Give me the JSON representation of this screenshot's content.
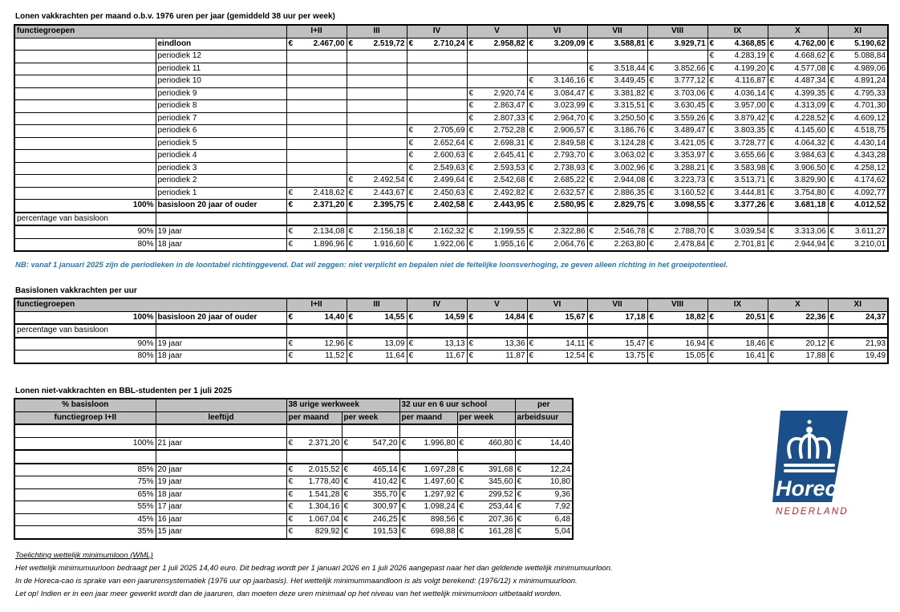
{
  "table1": {
    "title": "Lonen vakkrachten per maand o.b.v. 1976 uren per jaar (gemiddeld 38 uur per week)",
    "header_label": "functiegroepen",
    "columns": [
      "I+II",
      "III",
      "IV",
      "V",
      "VI",
      "VII",
      "VIII",
      "IX",
      "X",
      "XI"
    ],
    "currency": "€",
    "rows": [
      {
        "pct": "",
        "label": "eindloon",
        "bold": true,
        "values": [
          "2.467,00",
          "2.519,72",
          "2.710,24",
          "2.958,82",
          "3.209,09",
          "3.588,81",
          "3.929,71",
          "4.368,85",
          "4.762,00",
          "5.190,62"
        ]
      },
      {
        "pct": "",
        "label": "periodiek 12",
        "values": [
          null,
          null,
          null,
          null,
          null,
          null,
          null,
          "4.283,19",
          "4.668,62",
          "5.088,84"
        ]
      },
      {
        "pct": "",
        "label": "periodiek 11",
        "values": [
          null,
          null,
          null,
          null,
          null,
          "3.518,44",
          "3.852,66",
          "4.199,20",
          "4.577,08",
          "4.989,06"
        ]
      },
      {
        "pct": "",
        "label": "periodiek 10",
        "values": [
          null,
          null,
          null,
          null,
          "3.146,16",
          "3.449,45",
          "3.777,12",
          "4.116,87",
          "4.487,34",
          "4.891,24"
        ]
      },
      {
        "pct": "",
        "label": "periodiek 9",
        "values": [
          null,
          null,
          null,
          "2.920,74",
          "3.084,47",
          "3.381,82",
          "3.703,06",
          "4.036,14",
          "4.399,35",
          "4.795,33"
        ]
      },
      {
        "pct": "",
        "label": "periodiek 8",
        "values": [
          null,
          null,
          null,
          "2.863,47",
          "3.023,99",
          "3.315,51",
          "3.630,45",
          "3.957,00",
          "4.313,09",
          "4.701,30"
        ]
      },
      {
        "pct": "",
        "label": "periodiek 7",
        "values": [
          null,
          null,
          null,
          "2.807,33",
          "2.964,70",
          "3.250,50",
          "3.559,26",
          "3.879,42",
          "4.228,52",
          "4.609,12"
        ]
      },
      {
        "pct": "",
        "label": "periodiek 6",
        "values": [
          null,
          null,
          "2.705,69",
          "2.752,28",
          "2.906,57",
          "3.186,76",
          "3.489,47",
          "3.803,35",
          "4.145,60",
          "4.518,75"
        ]
      },
      {
        "pct": "",
        "label": "periodiek 5",
        "values": [
          null,
          null,
          "2.652,64",
          "2.698,31",
          "2.849,58",
          "3.124,28",
          "3.421,05",
          "3.728,77",
          "4.064,32",
          "4.430,14"
        ]
      },
      {
        "pct": "",
        "label": "periodiek 4",
        "values": [
          null,
          null,
          "2.600,63",
          "2.645,41",
          "2.793,70",
          "3.063,02",
          "3.353,97",
          "3.655,66",
          "3.984,63",
          "4.343,28"
        ]
      },
      {
        "pct": "",
        "label": "periodiek 3",
        "values": [
          null,
          null,
          "2.549,63",
          "2.593,53",
          "2.738,93",
          "3.002,96",
          "3.288,21",
          "3.583,98",
          "3.906,50",
          "4.258,12"
        ]
      },
      {
        "pct": "",
        "label": "periodiek 2",
        "values": [
          null,
          "2.492,54",
          "2.499,64",
          "2.542,68",
          "2.685,22",
          "2.944,08",
          "3.223,73",
          "3.513,71",
          "3.829,90",
          "4.174,62"
        ]
      },
      {
        "pct": "",
        "label": "periodiek 1",
        "values": [
          "2.418,62",
          "2.443,67",
          "2.450,63",
          "2.492,82",
          "2.632,57",
          "2.886,35",
          "3.160,52",
          "3.444,81",
          "3.754,80",
          "4.092,77"
        ]
      },
      {
        "pct": "100%",
        "label": "basisloon 20 jaar of ouder",
        "bold": true,
        "thick": true,
        "values": [
          "2.371,20",
          "2.395,75",
          "2.402,58",
          "2.443,95",
          "2.580,95",
          "2.829,75",
          "3.098,55",
          "3.377,26",
          "3.681,18",
          "4.012,52"
        ]
      },
      {
        "section": "percentage van basisloon",
        "thick": true
      },
      {
        "pct": "90%",
        "label": "19 jaar",
        "values": [
          "2.134,08",
          "2.156,18",
          "2.162,32",
          "2.199,55",
          "2.322,86",
          "2.546,78",
          "2.788,70",
          "3.039,54",
          "3.313,06",
          "3.611,27"
        ]
      },
      {
        "pct": "80%",
        "label": "18 jaar",
        "values": [
          "1.896,96",
          "1.916,60",
          "1.922,06",
          "1.955,16",
          "2.064,76",
          "2.263,80",
          "2.478,84",
          "2.701,81",
          "2.944,94",
          "3.210,01"
        ]
      }
    ]
  },
  "nb_text": "NB: vanaf 1 januari 2025 zijn de periodieken in de loontabel richtinggevend. Dat wil zeggen: niet verplicht en bepalen niet de feitelijke loonsverhoging, ze geven alleen richting in het groeipotentieel.",
  "table2": {
    "title": "Basislonen  vakkrachten per uur",
    "header_label": "functiegroepen",
    "columns": [
      "I+II",
      "III",
      "IV",
      "V",
      "VI",
      "VII",
      "VIII",
      "IX",
      "X",
      "XI"
    ],
    "currency": "€",
    "rows": [
      {
        "pct": "100%",
        "label": "basisloon 20 jaar of ouder",
        "bold": true,
        "thick": true,
        "values": [
          "14,40",
          "14,55",
          "14,59",
          "14,84",
          "15,67",
          "17,18",
          "18,82",
          "20,51",
          "22,36",
          "24,37"
        ]
      },
      {
        "section": "percentage van basisloon",
        "thick": true
      },
      {
        "pct": "90%",
        "label": "19 jaar",
        "values": [
          "12,96",
          "13,09",
          "13,13",
          "13,36",
          "14,11",
          "15,47",
          "16,94",
          "18,46",
          "20,12",
          "21,93"
        ]
      },
      {
        "pct": "80%",
        "label": "18 jaar",
        "values": [
          "11,52",
          "11,64",
          "11,67",
          "11,87",
          "12,54",
          "13,75",
          "15,05",
          "16,41",
          "17,88",
          "19,49"
        ]
      }
    ]
  },
  "table3": {
    "title": "Lonen niet-vakkrachten en BBL-studenten per 1 juli 2025",
    "header1": [
      "% basisloon",
      "",
      "38 urige werkweek",
      "32 uur en 6 uur school",
      "per"
    ],
    "header2": [
      "functiegroep I+II",
      "leeftijd",
      "per maand",
      "per week",
      "per maand",
      "per week",
      "arbeidsuur"
    ],
    "currency": "€",
    "rows": [
      {
        "blank": true
      },
      {
        "pct": "100%",
        "label": "21 jaar",
        "thick": true,
        "values": [
          "2.371,20",
          "547,20",
          "1.996,80",
          "460,80",
          "14,40"
        ]
      },
      {
        "blank": true,
        "thick": true
      },
      {
        "pct": "85%",
        "label": "20 jaar",
        "values": [
          "2.015,52",
          "465,14",
          "1.697,28",
          "391,68",
          "12,24"
        ]
      },
      {
        "pct": "75%",
        "label": "19 jaar",
        "values": [
          "1.778,40",
          "410,42",
          "1.497,60",
          "345,60",
          "10,80"
        ]
      },
      {
        "pct": "65%",
        "label": "18 jaar",
        "values": [
          "1.541,28",
          "355,70",
          "1.297,92",
          "299,52",
          "9,36"
        ]
      },
      {
        "pct": "55%",
        "label": "17 jaar",
        "values": [
          "1.304,16",
          "300,97",
          "1.098,24",
          "253,44",
          "7,92"
        ]
      },
      {
        "pct": "45%",
        "label": "16 jaar",
        "values": [
          "1.067,04",
          "246,25",
          "898,56",
          "207,36",
          "6,48"
        ]
      },
      {
        "pct": "35%",
        "label": "15 jaar",
        "values": [
          "829,92",
          "191,53",
          "698,88",
          "161,28",
          "5,04"
        ]
      }
    ]
  },
  "notes": {
    "heading": "Toelichting wettelijk minimumloon (WML)",
    "lines": [
      "Het wettelijk minimumuurloon bedraagt per 1 juli 2025 14,40 euro. Dit bedrag wordt per 1 januari 2026 en 1 juli 2026 aangepast naar het dan geldende wettelijk minimumuurloon.",
      "In de Horeca-cao is sprake van een jaarurensystematiek (1976 uur op jaarbasis). Het wettelijk minimummaandloon is als volgt berekend: (1976/12) x minimumuurloon.",
      "Let op! Indien er in een jaar meer gewerkt wordt dan de jaaruren, dan moeten deze uren minimaal op het niveau van het wettelijk minimumloon uitbetaald worden."
    ]
  },
  "logo": {
    "word": "Horeca",
    "sub": "NEDERLAND",
    "blue": "#1a4f8c",
    "red": "#c0272d"
  },
  "colors": {
    "header_bg": "#c0c0c0",
    "nb_text": "#2e75b6"
  }
}
